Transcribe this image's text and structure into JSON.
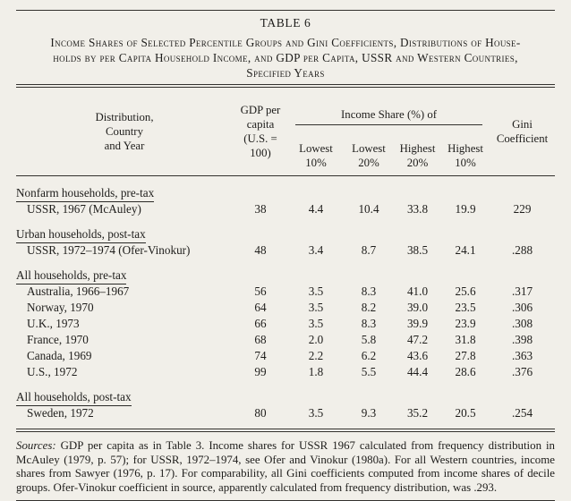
{
  "page": {
    "title": "TABLE 6",
    "caption": "Income Shares of Selected Percentile Groups and Gini Coefficients, Distributions of House-\nholds by per Capita Household Income, and GDP per Capita, USSR and Western Countries,\nSpecified Years"
  },
  "table": {
    "header": {
      "country": "Distribution,\nCountry\nand Year",
      "gdp": "GDP per\ncapita\n(U.S. = 100)",
      "income_share_spanner": "Income Share (%) of",
      "subcols": [
        "Lowest\n10%",
        "Lowest\n20%",
        "Highest\n20%",
        "Highest\n10%"
      ],
      "gini": "Gini\nCoefficient"
    },
    "sections": [
      {
        "label": "Nonfarm households, pre-tax",
        "rows": [
          {
            "country": "USSR, 1967 (McAuley)",
            "gdp": "38",
            "shares": [
              "4.4",
              "10.4",
              "33.8",
              "19.9"
            ],
            "gini": "229"
          }
        ]
      },
      {
        "label": "Urban households, post-tax",
        "rows": [
          {
            "country": "USSR, 1972–1974 (Ofer-Vinokur)",
            "gdp": "48",
            "shares": [
              "3.4",
              "8.7",
              "38.5",
              "24.1"
            ],
            "gini": ".288"
          }
        ]
      },
      {
        "label": "All households, pre-tax",
        "rows": [
          {
            "country": "Australia, 1966–1967",
            "gdp": "56",
            "shares": [
              "3.5",
              "8.3",
              "41.0",
              "25.6"
            ],
            "gini": ".317"
          },
          {
            "country": "Norway, 1970",
            "gdp": "64",
            "shares": [
              "3.5",
              "8.2",
              "39.0",
              "23.5"
            ],
            "gini": ".306"
          },
          {
            "country": "U.K., 1973",
            "gdp": "66",
            "shares": [
              "3.5",
              "8.3",
              "39.9",
              "23.9"
            ],
            "gini": ".308"
          },
          {
            "country": "France, 1970",
            "gdp": "68",
            "shares": [
              "2.0",
              "5.8",
              "47.2",
              "31.8"
            ],
            "gini": ".398"
          },
          {
            "country": "Canada, 1969",
            "gdp": "74",
            "shares": [
              "2.2",
              "6.2",
              "43.6",
              "27.8"
            ],
            "gini": ".363"
          },
          {
            "country": "U.S., 1972",
            "gdp": "99",
            "shares": [
              "1.8",
              "5.5",
              "44.4",
              "28.6"
            ],
            "gini": ".376"
          }
        ]
      },
      {
        "label": "All households, post-tax",
        "rows": [
          {
            "country": "Sweden, 1972",
            "gdp": "80",
            "shares": [
              "3.5",
              "9.3",
              "35.2",
              "20.5"
            ],
            "gini": ".254"
          }
        ]
      }
    ]
  },
  "sources": {
    "label": "Sources:",
    "text": "GDP per capita as in Table 3. Income shares for USSR 1967 calculated from frequency distribution in McAuley (1979, p. 57); for USSR, 1972–1974, see Ofer and Vinokur (1980a). For all Western countries, income shares from Sawyer (1976, p. 17). For comparability, all Gini coefficients computed from income shares of decile groups. Ofer-Vinokur coefficient in source, apparently calculated from frequency distribution, was .293."
  }
}
